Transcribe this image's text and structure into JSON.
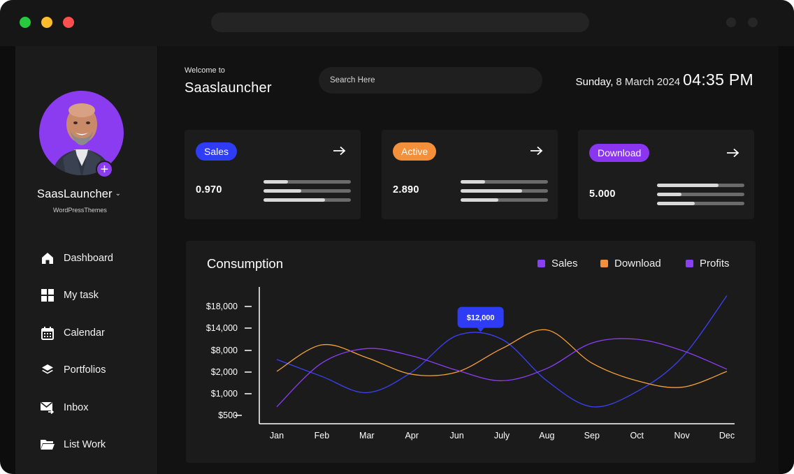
{
  "window": {
    "traffic_lights": {
      "green": "#27c93f",
      "yellow": "#ffbd2e",
      "red": "#ff4f4f"
    }
  },
  "sidebar": {
    "avatar_icon": "person-photo",
    "add_icon_glyph": "+",
    "profile_name": "SaasLauncher",
    "profile_chevron": "⌄",
    "profile_subtitle": "WordPressThemes",
    "items": [
      {
        "label": "Dashboard",
        "icon": "home-icon"
      },
      {
        "label": "My task",
        "icon": "grid-icon"
      },
      {
        "label": "Calendar",
        "icon": "calendar-icon"
      },
      {
        "label": "Portfolios",
        "icon": "layers-icon"
      },
      {
        "label": "Inbox",
        "icon": "mail-forward-icon"
      },
      {
        "label": "List Work",
        "icon": "folder-icon"
      }
    ]
  },
  "header": {
    "welcome": "Welcome to",
    "brand": "Saaslauncher",
    "search_placeholder": "Search Here",
    "day": "Sunday,",
    "date": "8 March 2024",
    "time": "04:35 PM"
  },
  "cards": [
    {
      "badge": "Sales",
      "badge_color": "#2f3cf5",
      "value": "0.970",
      "bar_fills": [
        0.28,
        0.43,
        0.7
      ]
    },
    {
      "badge": "Active",
      "badge_color": "#f5903a",
      "value": "2.890",
      "bar_fills": [
        0.28,
        0.7,
        0.43
      ]
    },
    {
      "badge": "Download",
      "badge_color": "#8a35ef",
      "value": "5.000",
      "bar_fills": [
        0.7,
        0.28,
        0.43
      ]
    }
  ],
  "chart_data": {
    "type": "line",
    "title": "Consumption",
    "categories": [
      "Jan",
      "Feb",
      "Mar",
      "Apr",
      "Jun",
      "July",
      "Aug",
      "Sep",
      "Oct",
      "Nov",
      "Dec"
    ],
    "y_ticks": [
      "$18,000",
      "$14,000",
      "$8,000",
      "$2,000",
      "$1,000",
      "$500"
    ],
    "legend_position": "top-right",
    "series": [
      {
        "name": "Sales",
        "color": "#3a42f5",
        "values": [
          5500,
          1800,
          1050,
          2000,
          12000,
          11000,
          1600,
          700,
          1100,
          6000,
          20000
        ]
      },
      {
        "name": "Download",
        "color": "#f5a03a",
        "values": [
          2200,
          9500,
          6000,
          1900,
          2000,
          8500,
          13500,
          4500,
          1600,
          1300,
          2200
        ]
      },
      {
        "name": "Profits",
        "color": "#8a3ff5",
        "values": [
          700,
          4500,
          8500,
          6500,
          2500,
          1600,
          3000,
          10000,
          11000,
          8000,
          2800
        ]
      }
    ],
    "tooltip": {
      "category": "Jun",
      "label": "$12,000",
      "color": "#2f3cf5"
    },
    "grid": false
  }
}
